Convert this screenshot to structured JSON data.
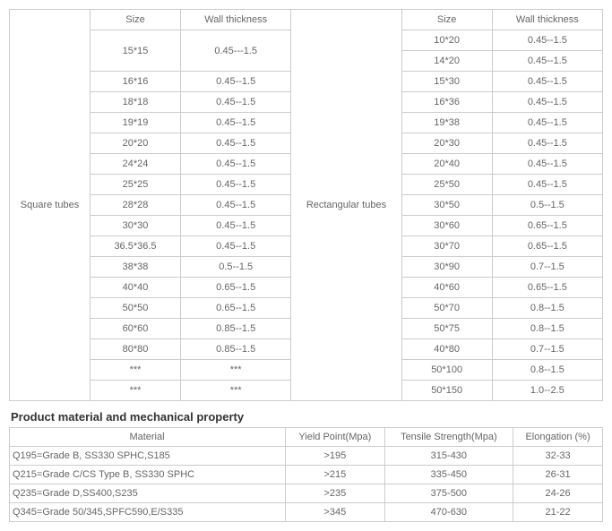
{
  "tubes": {
    "square_header": "Square tubes",
    "rect_header": "Rectangular   tubes",
    "size_header": "Size",
    "wt_header": "Wall thickness",
    "square_rows": [
      {
        "size": "15*15",
        "wt": "0.45---1.5"
      },
      {
        "size": "16*16",
        "wt": "0.45--1.5"
      },
      {
        "size": "18*18",
        "wt": "0.45--1.5"
      },
      {
        "size": "19*19",
        "wt": "0.45--1.5"
      },
      {
        "size": "20*20",
        "wt": "0.45--1.5"
      },
      {
        "size": "24*24",
        "wt": "0.45--1.5"
      },
      {
        "size": "25*25",
        "wt": "0.45--1.5"
      },
      {
        "size": "28*28",
        "wt": "0.45--1.5"
      },
      {
        "size": "30*30",
        "wt": "0.45--1.5"
      },
      {
        "size": "36.5*36.5",
        "wt": "0.45--1.5"
      },
      {
        "size": "38*38",
        "wt": "0.5--1.5"
      },
      {
        "size": "40*40",
        "wt": "0.65--1.5"
      },
      {
        "size": "50*50",
        "wt": "0.65--1.5"
      },
      {
        "size": "60*60",
        "wt": "0.85--1.5"
      },
      {
        "size": "80*80",
        "wt": "0.85--1.5"
      },
      {
        "size": "***",
        "wt": "***"
      },
      {
        "size": "***",
        "wt": "***"
      }
    ],
    "rect_rows": [
      {
        "size": "10*20",
        "wt": "0.45--1.5"
      },
      {
        "size": "14*20",
        "wt": "0.45--1.5"
      },
      {
        "size": "15*30",
        "wt": "0.45--1.5"
      },
      {
        "size": "16*36",
        "wt": "0.45--1.5"
      },
      {
        "size": "19*38",
        "wt": "0.45--1.5"
      },
      {
        "size": "20*30",
        "wt": "0.45--1.5"
      },
      {
        "size": "20*40",
        "wt": "0.45--1.5"
      },
      {
        "size": "25*50",
        "wt": "0.45--1.5"
      },
      {
        "size": "30*50",
        "wt": "0.5--1.5"
      },
      {
        "size": "30*60",
        "wt": "0.65--1.5"
      },
      {
        "size": "30*70",
        "wt": "0.65--1.5"
      },
      {
        "size": "30*90",
        "wt": "0.7--1.5"
      },
      {
        "size": "40*60",
        "wt": "0.65--1.5"
      },
      {
        "size": "50*70",
        "wt": "0.8--1.5"
      },
      {
        "size": "50*75",
        "wt": "0.8--1.5"
      },
      {
        "size": "40*80",
        "wt": "0.7--1.5"
      },
      {
        "size": "50*100",
        "wt": "0.8--1.5"
      },
      {
        "size": "50*150",
        "wt": "1.0--2.5"
      }
    ]
  },
  "section_title": "Product material and mechanical property",
  "mat": {
    "cols": [
      "Material",
      "Yield Point(Mpa)",
      "Tensile Strength(Mpa)",
      "Elongation (%)"
    ],
    "rows": [
      [
        "Q195=Grade B, SS330 SPHC,S185",
        ">195",
        "315-430",
        "32-33"
      ],
      [
        "Q215=Grade C/CS Type B, SS330 SPHC",
        ">215",
        "335-450",
        "26-31"
      ],
      [
        "Q235=Grade D,SS400,S235",
        ">235",
        "375-500",
        "24-26"
      ],
      [
        "Q345=Grade 50/345,SPFC590,E/S335",
        ">345",
        "470-630",
        "21-22"
      ]
    ]
  }
}
